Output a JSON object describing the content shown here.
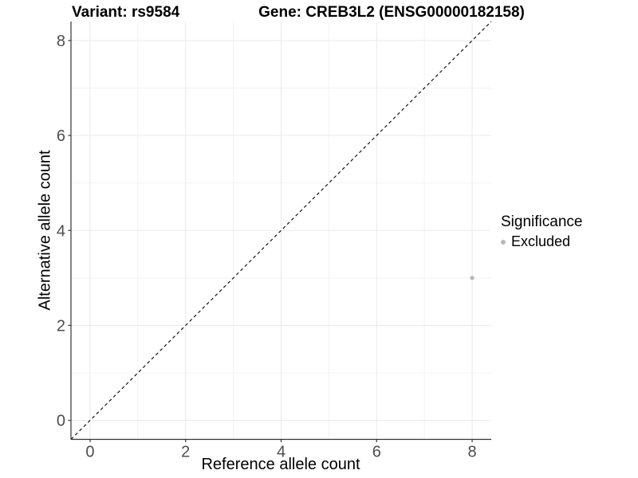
{
  "titles": {
    "variant": "Variant: rs9584",
    "gene": "Gene: CREB3L2 (ENSG00000182158)"
  },
  "chart_data": {
    "type": "scatter",
    "title_left": "Variant: rs9584",
    "title_right": "Gene: CREB3L2 (ENSG00000182158)",
    "xlabel": "Reference allele count",
    "ylabel": "Alternative allele count",
    "xlim": [
      -0.4,
      8.4
    ],
    "ylim": [
      -0.4,
      8.4
    ],
    "xticks": [
      0,
      2,
      4,
      6,
      8
    ],
    "yticks": [
      0,
      2,
      4,
      6,
      8
    ],
    "minor_xticks": [
      1,
      3,
      5,
      7
    ],
    "minor_yticks": [
      1,
      3,
      5,
      7
    ],
    "grid": "on",
    "points": [
      {
        "x": 8,
        "y": 3,
        "significance": "Excluded"
      }
    ],
    "reference_line": {
      "type": "identity",
      "equation": "y = x",
      "style": "dashed"
    },
    "legend": {
      "title": "Significance",
      "position": "right",
      "entries": [
        {
          "label": "Excluded",
          "color": "#b9b9b9"
        }
      ]
    }
  },
  "colors": {
    "background": "#ffffff",
    "axis_line": "#333333",
    "tick_label": "#4d4d4d",
    "grid_major": "#e9e9e9",
    "grid_minor": "#f3f3f3",
    "point": "#b9b9b9",
    "reference_line": "#000000",
    "title_text": "#000000"
  }
}
